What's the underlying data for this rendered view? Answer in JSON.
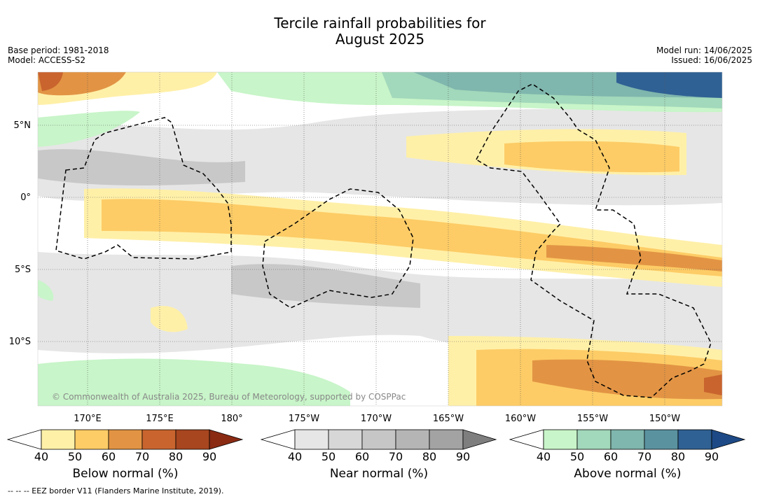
{
  "title": {
    "line1": "Tercile rainfall probabilities for",
    "line2": "August 2025"
  },
  "meta_left": {
    "base_period": "Base period: 1981-2018",
    "model": "Model: ACCESS-S2"
  },
  "meta_right": {
    "model_run": "Model run: 14/06/2025",
    "issued": "Issued: 16/06/2025"
  },
  "lat_labels": [
    "5°N",
    "0°",
    "5°S",
    "10°S"
  ],
  "lon_labels": [
    "170°E",
    "175°E",
    "180°",
    "175°W",
    "170°W",
    "165°W",
    "160°W",
    "155°W",
    "150°W"
  ],
  "attribution": "© Commonwealth of Australia 2025, Bureau of Meteorology, supported by COSPPac",
  "colorbars": [
    {
      "label": "Below normal (%)",
      "ticks": [
        "40",
        "50",
        "60",
        "70",
        "80",
        "90"
      ],
      "colors": [
        "#ffffff",
        "#fff0a8",
        "#fdcc66",
        "#e29444",
        "#c9642e",
        "#a8461f",
        "#8a2a13"
      ]
    },
    {
      "label": "Near normal (%)",
      "ticks": [
        "40",
        "50",
        "60",
        "70",
        "80",
        "90"
      ],
      "colors": [
        "#ffffff",
        "#e6e6e6",
        "#d7d7d7",
        "#c6c6c6",
        "#b5b5b5",
        "#a3a3a3",
        "#7e7e7e"
      ]
    },
    {
      "label": "Above normal (%)",
      "ticks": [
        "40",
        "50",
        "60",
        "70",
        "80",
        "90"
      ],
      "colors": [
        "#ffffff",
        "#c8f5c9",
        "#a2d8bb",
        "#7fb6ad",
        "#5a92a0",
        "#306194",
        "#1d4a86"
      ]
    }
  ],
  "footer": "--  --  -- EEZ border V11 (Flanders Marine Institute, 2019)."
}
